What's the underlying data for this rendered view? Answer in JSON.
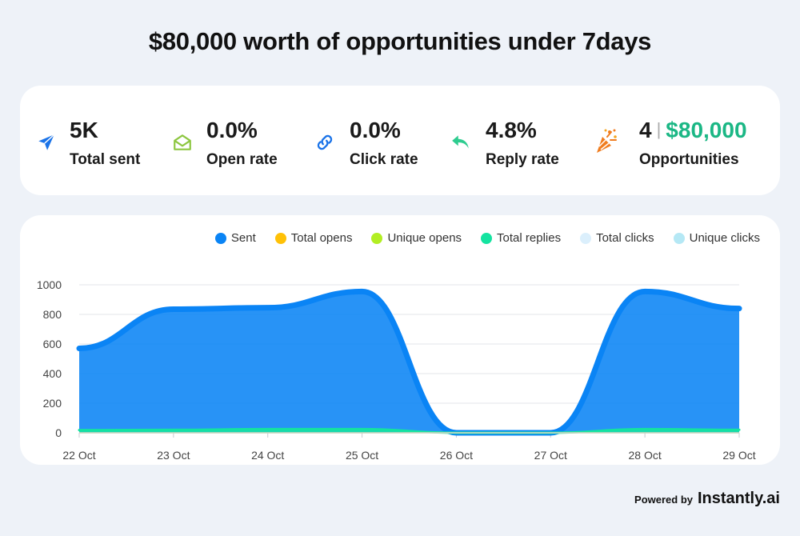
{
  "headline": "$80,000 worth of opportunities under 7days",
  "stats": [
    {
      "value": "5K",
      "label": "Total sent",
      "icon": "paper-plane-icon",
      "color": "#1a73e8"
    },
    {
      "value": "0.0%",
      "label": "Open rate",
      "icon": "open-envelope-icon",
      "color": "#8cc63f"
    },
    {
      "value": "0.0%",
      "label": "Click rate",
      "icon": "link-icon",
      "color": "#1a73e8"
    },
    {
      "value": "4.8%",
      "label": "Reply rate",
      "icon": "reply-arrow-icon",
      "color": "#2ecc8f"
    },
    {
      "count": "4",
      "separator": "|",
      "amount": "$80,000",
      "label": "Opportunities",
      "icon": "party-popper-icon",
      "color": "#f07c1e"
    }
  ],
  "footer": {
    "powered_by": "Powered by",
    "brand": "Instantly.ai"
  },
  "chart_data": {
    "type": "area",
    "categories": [
      "22 Oct",
      "23 Oct",
      "24 Oct",
      "25 Oct",
      "26 Oct",
      "27 Oct",
      "28 Oct",
      "29 Oct"
    ],
    "ylim": [
      0,
      1000
    ],
    "yticks": [
      0,
      200,
      400,
      600,
      800,
      1000
    ],
    "grid": true,
    "legend_position": "top-right",
    "series": [
      {
        "name": "Sent",
        "color": "#0a84f5",
        "values": [
          570,
          835,
          845,
          955,
          0,
          0,
          955,
          840
        ]
      },
      {
        "name": "Total opens",
        "color": "#ffc107",
        "values": [
          0,
          0,
          0,
          0,
          0,
          0,
          0,
          0
        ]
      },
      {
        "name": "Unique opens",
        "color": "#b2ee23",
        "values": [
          0,
          0,
          0,
          0,
          0,
          0,
          0,
          0
        ]
      },
      {
        "name": "Total replies",
        "color": "#14e3a0",
        "values": [
          18,
          20,
          25,
          25,
          0,
          0,
          25,
          20
        ]
      },
      {
        "name": "Total clicks",
        "color": "#dbeffc",
        "values": [
          0,
          0,
          0,
          0,
          0,
          0,
          0,
          0
        ]
      },
      {
        "name": "Unique clicks",
        "color": "#b5e8f5",
        "values": [
          0,
          0,
          0,
          0,
          0,
          0,
          0,
          0
        ]
      }
    ]
  }
}
